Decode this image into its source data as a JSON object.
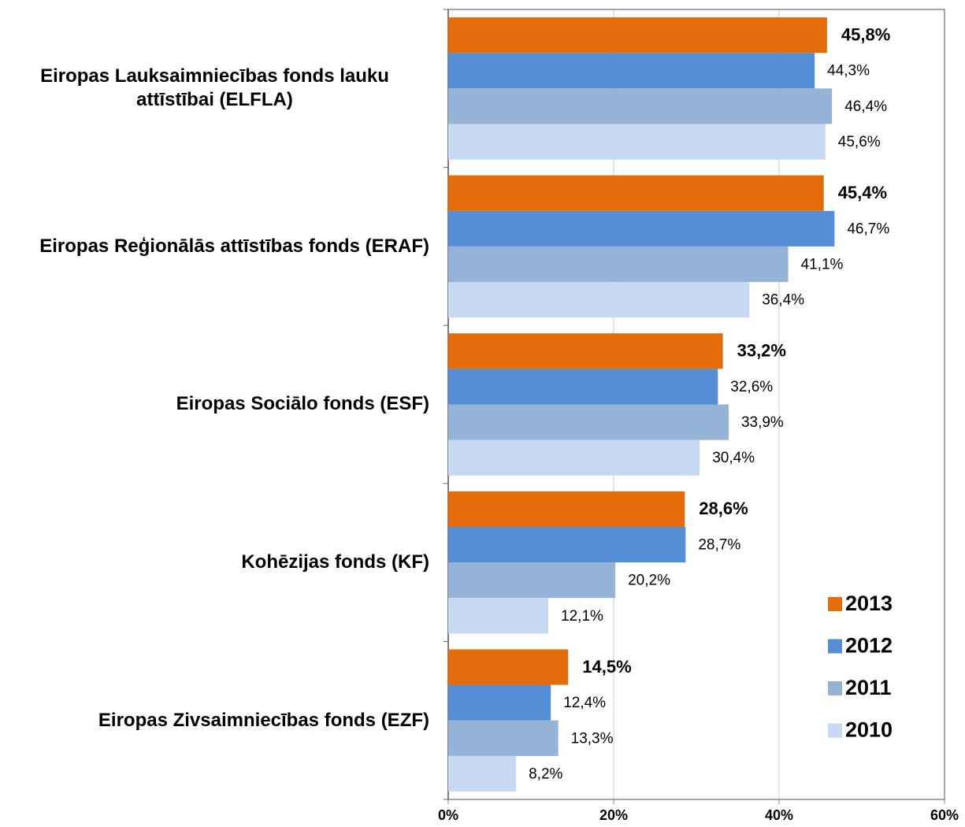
{
  "chart_data": {
    "type": "bar",
    "orientation": "horizontal",
    "categories": [
      "Eiropas Lauksaimniecības fonds lauku attīstībai (ELFLA)",
      "Eiropas Reģionālās attīstības fonds (ERAF)",
      "Eiropas Sociālo fonds (ESF)",
      "Kohēzijas fonds (KF)",
      "Eiropas Zivsaimniecības fonds (EZF)"
    ],
    "series": [
      {
        "name": "2013",
        "color": "#e46c0a",
        "values": [
          45.8,
          45.4,
          33.2,
          28.6,
          14.5
        ],
        "value_labels": [
          "45,8%",
          "45,4%",
          "33,2%",
          "28,6%",
          "14,5%"
        ]
      },
      {
        "name": "2012",
        "color": "#558ed5",
        "values": [
          44.3,
          46.7,
          32.6,
          28.7,
          12.4
        ],
        "value_labels": [
          "44,3%",
          "46,7%",
          "32,6%",
          "28,7%",
          "12,4%"
        ]
      },
      {
        "name": "2011",
        "color": "#95b3d7",
        "values": [
          46.4,
          41.1,
          33.9,
          20.2,
          13.3
        ],
        "value_labels": [
          "46,4%",
          "41,1%",
          "33,9%",
          "20,2%",
          "13,3%"
        ]
      },
      {
        "name": "2010",
        "color": "#c6d9f1",
        "values": [
          45.6,
          36.4,
          30.4,
          12.1,
          8.2
        ],
        "value_labels": [
          "45,6%",
          "36,4%",
          "30,4%",
          "12,1%",
          "8,2%"
        ]
      }
    ],
    "xlim": [
      0,
      60
    ],
    "xticks": [
      {
        "value": 0,
        "label": "0%"
      },
      {
        "value": 20,
        "label": "20%"
      },
      {
        "value": 40,
        "label": "40%"
      },
      {
        "value": 60,
        "label": "60%"
      }
    ],
    "grid": true,
    "legend": "lower right"
  }
}
